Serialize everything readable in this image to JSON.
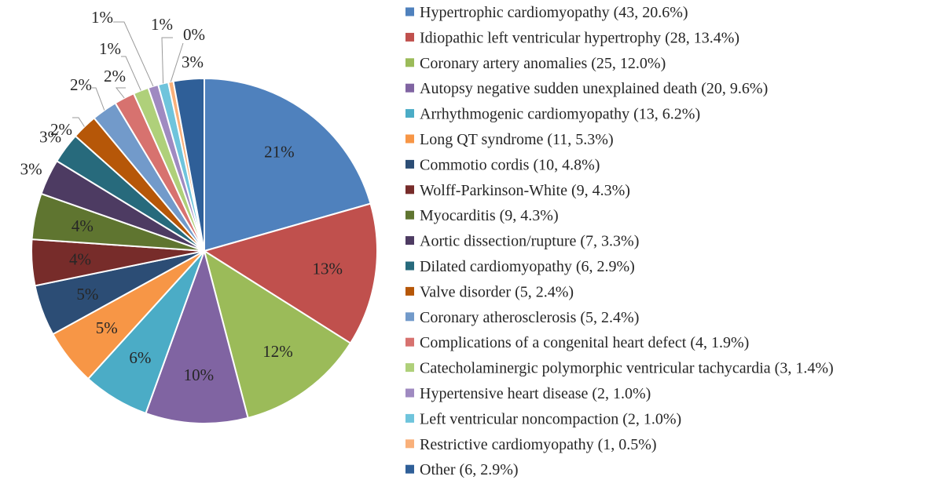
{
  "chart_data": {
    "type": "pie",
    "title": "",
    "slices": [
      {
        "name": "Hypertrophic cardiomyopathy",
        "count": 43,
        "percent": 20.6,
        "label": "21%",
        "legend": "Hypertrophic cardiomyopathy (43, 20.6%)",
        "color": "#4f81bd"
      },
      {
        "name": "Idiopathic left ventricular hypertrophy",
        "count": 28,
        "percent": 13.4,
        "label": "13%",
        "legend": "Idiopathic left ventricular hypertrophy (28, 13.4%)",
        "color": "#c0504d"
      },
      {
        "name": "Coronary artery anomalies",
        "count": 25,
        "percent": 12.0,
        "label": "12%",
        "legend": "Coronary artery anomalies (25, 12.0%)",
        "color": "#9bbb59"
      },
      {
        "name": "Autopsy negative sudden unexplained death",
        "count": 20,
        "percent": 9.6,
        "label": "10%",
        "legend": "Autopsy negative sudden unexplained death (20, 9.6%)",
        "color": "#8064a2"
      },
      {
        "name": "Arrhythmogenic cardiomyopathy",
        "count": 13,
        "percent": 6.2,
        "label": "6%",
        "legend": "Arrhythmogenic cardiomyopathy (13, 6.2%)",
        "color": "#4bacc6"
      },
      {
        "name": "Long QT syndrome",
        "count": 11,
        "percent": 5.3,
        "label": "5%",
        "legend": "Long QT syndrome (11, 5.3%)",
        "color": "#f79646"
      },
      {
        "name": "Commotio cordis",
        "count": 10,
        "percent": 4.8,
        "label": "5%",
        "legend": "Commotio cordis (10, 4.8%)",
        "color": "#2c4d75"
      },
      {
        "name": "Wolff-Parkinson-White",
        "count": 9,
        "percent": 4.3,
        "label": "4%",
        "legend": "Wolff-Parkinson-White (9, 4.3%)",
        "color": "#772c2a"
      },
      {
        "name": "Myocarditis",
        "count": 9,
        "percent": 4.3,
        "label": "4%",
        "legend": "Myocarditis (9, 4.3%)",
        "color": "#5f7530"
      },
      {
        "name": "Aortic dissection/rupture",
        "count": 7,
        "percent": 3.3,
        "label": "3%",
        "legend": "Aortic dissection/rupture (7, 3.3%)",
        "color": "#4d3b62"
      },
      {
        "name": "Dilated cardiomyopathy",
        "count": 6,
        "percent": 2.9,
        "label": "3%",
        "legend": "Dilated cardiomyopathy (6, 2.9%)",
        "color": "#276a7c"
      },
      {
        "name": "Valve disorder",
        "count": 5,
        "percent": 2.4,
        "label": "2%",
        "legend": "Valve disorder (5, 2.4%)",
        "color": "#b65708"
      },
      {
        "name": "Coronary atherosclerosis",
        "count": 5,
        "percent": 2.4,
        "label": "2%",
        "legend": "Coronary atherosclerosis (5, 2.4%)",
        "color": "#729aca"
      },
      {
        "name": "Complications of a congenital heart defect",
        "count": 4,
        "percent": 1.9,
        "label": "2%",
        "legend": "Complications of a congenital heart defect (4, 1.9%)",
        "color": "#d7726f"
      },
      {
        "name": "Catecholaminergic polymorphic ventricular tachycardia",
        "count": 3,
        "percent": 1.4,
        "label": "1%",
        "legend": "Catecholaminergic polymorphic ventricular tachycardia (3, 1.4%)",
        "color": "#afd07a"
      },
      {
        "name": "Hypertensive heart disease",
        "count": 2,
        "percent": 1.0,
        "label": "1%",
        "legend": "Hypertensive heart disease (2, 1.0%)",
        "color": "#9f8ac1"
      },
      {
        "name": "Left ventricular noncompaction",
        "count": 2,
        "percent": 1.0,
        "label": "1%",
        "legend": "Left ventricular noncompaction (2, 1.0%)",
        "color": "#6fc4dc"
      },
      {
        "name": "Restrictive cardiomyopathy",
        "count": 1,
        "percent": 0.5,
        "label": "0%",
        "legend": "Restrictive cardiomyopathy (1, 0.5%)",
        "color": "#f9b07a"
      },
      {
        "name": "Other",
        "count": 6,
        "percent": 2.9,
        "label": "3%",
        "legend": "Other (6, 2.9%)",
        "color": "#2f5f98"
      }
    ],
    "legend_position": "right"
  }
}
